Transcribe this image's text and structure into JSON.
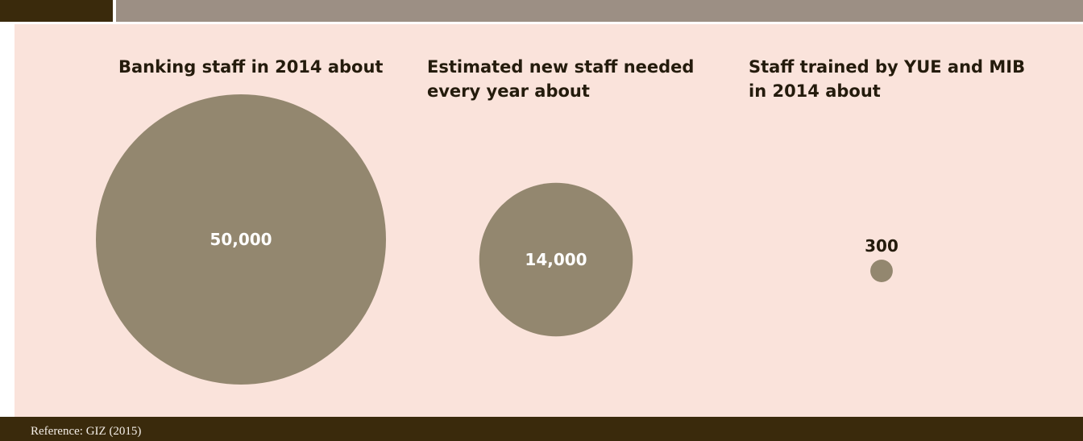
{
  "colors": {
    "header": "#9c8f84",
    "header_tab": "#3a2a0c",
    "panel_background": "#fae3db",
    "bubble": "#93876f",
    "footer": "#3a2a0c"
  },
  "chart_data": {
    "type": "bubble",
    "items": [
      {
        "label": "Banking staff in 2014 about",
        "value": 50000,
        "value_label": "50,000"
      },
      {
        "label": "Estimated new staff needed\nevery year about",
        "value": 14000,
        "value_label": "14,000"
      },
      {
        "label": "Staff trained by YUE and MIB\nin 2014 about",
        "value": 300,
        "value_label": "300"
      }
    ]
  },
  "footer": {
    "reference": "Reference: GIZ (2015)"
  }
}
